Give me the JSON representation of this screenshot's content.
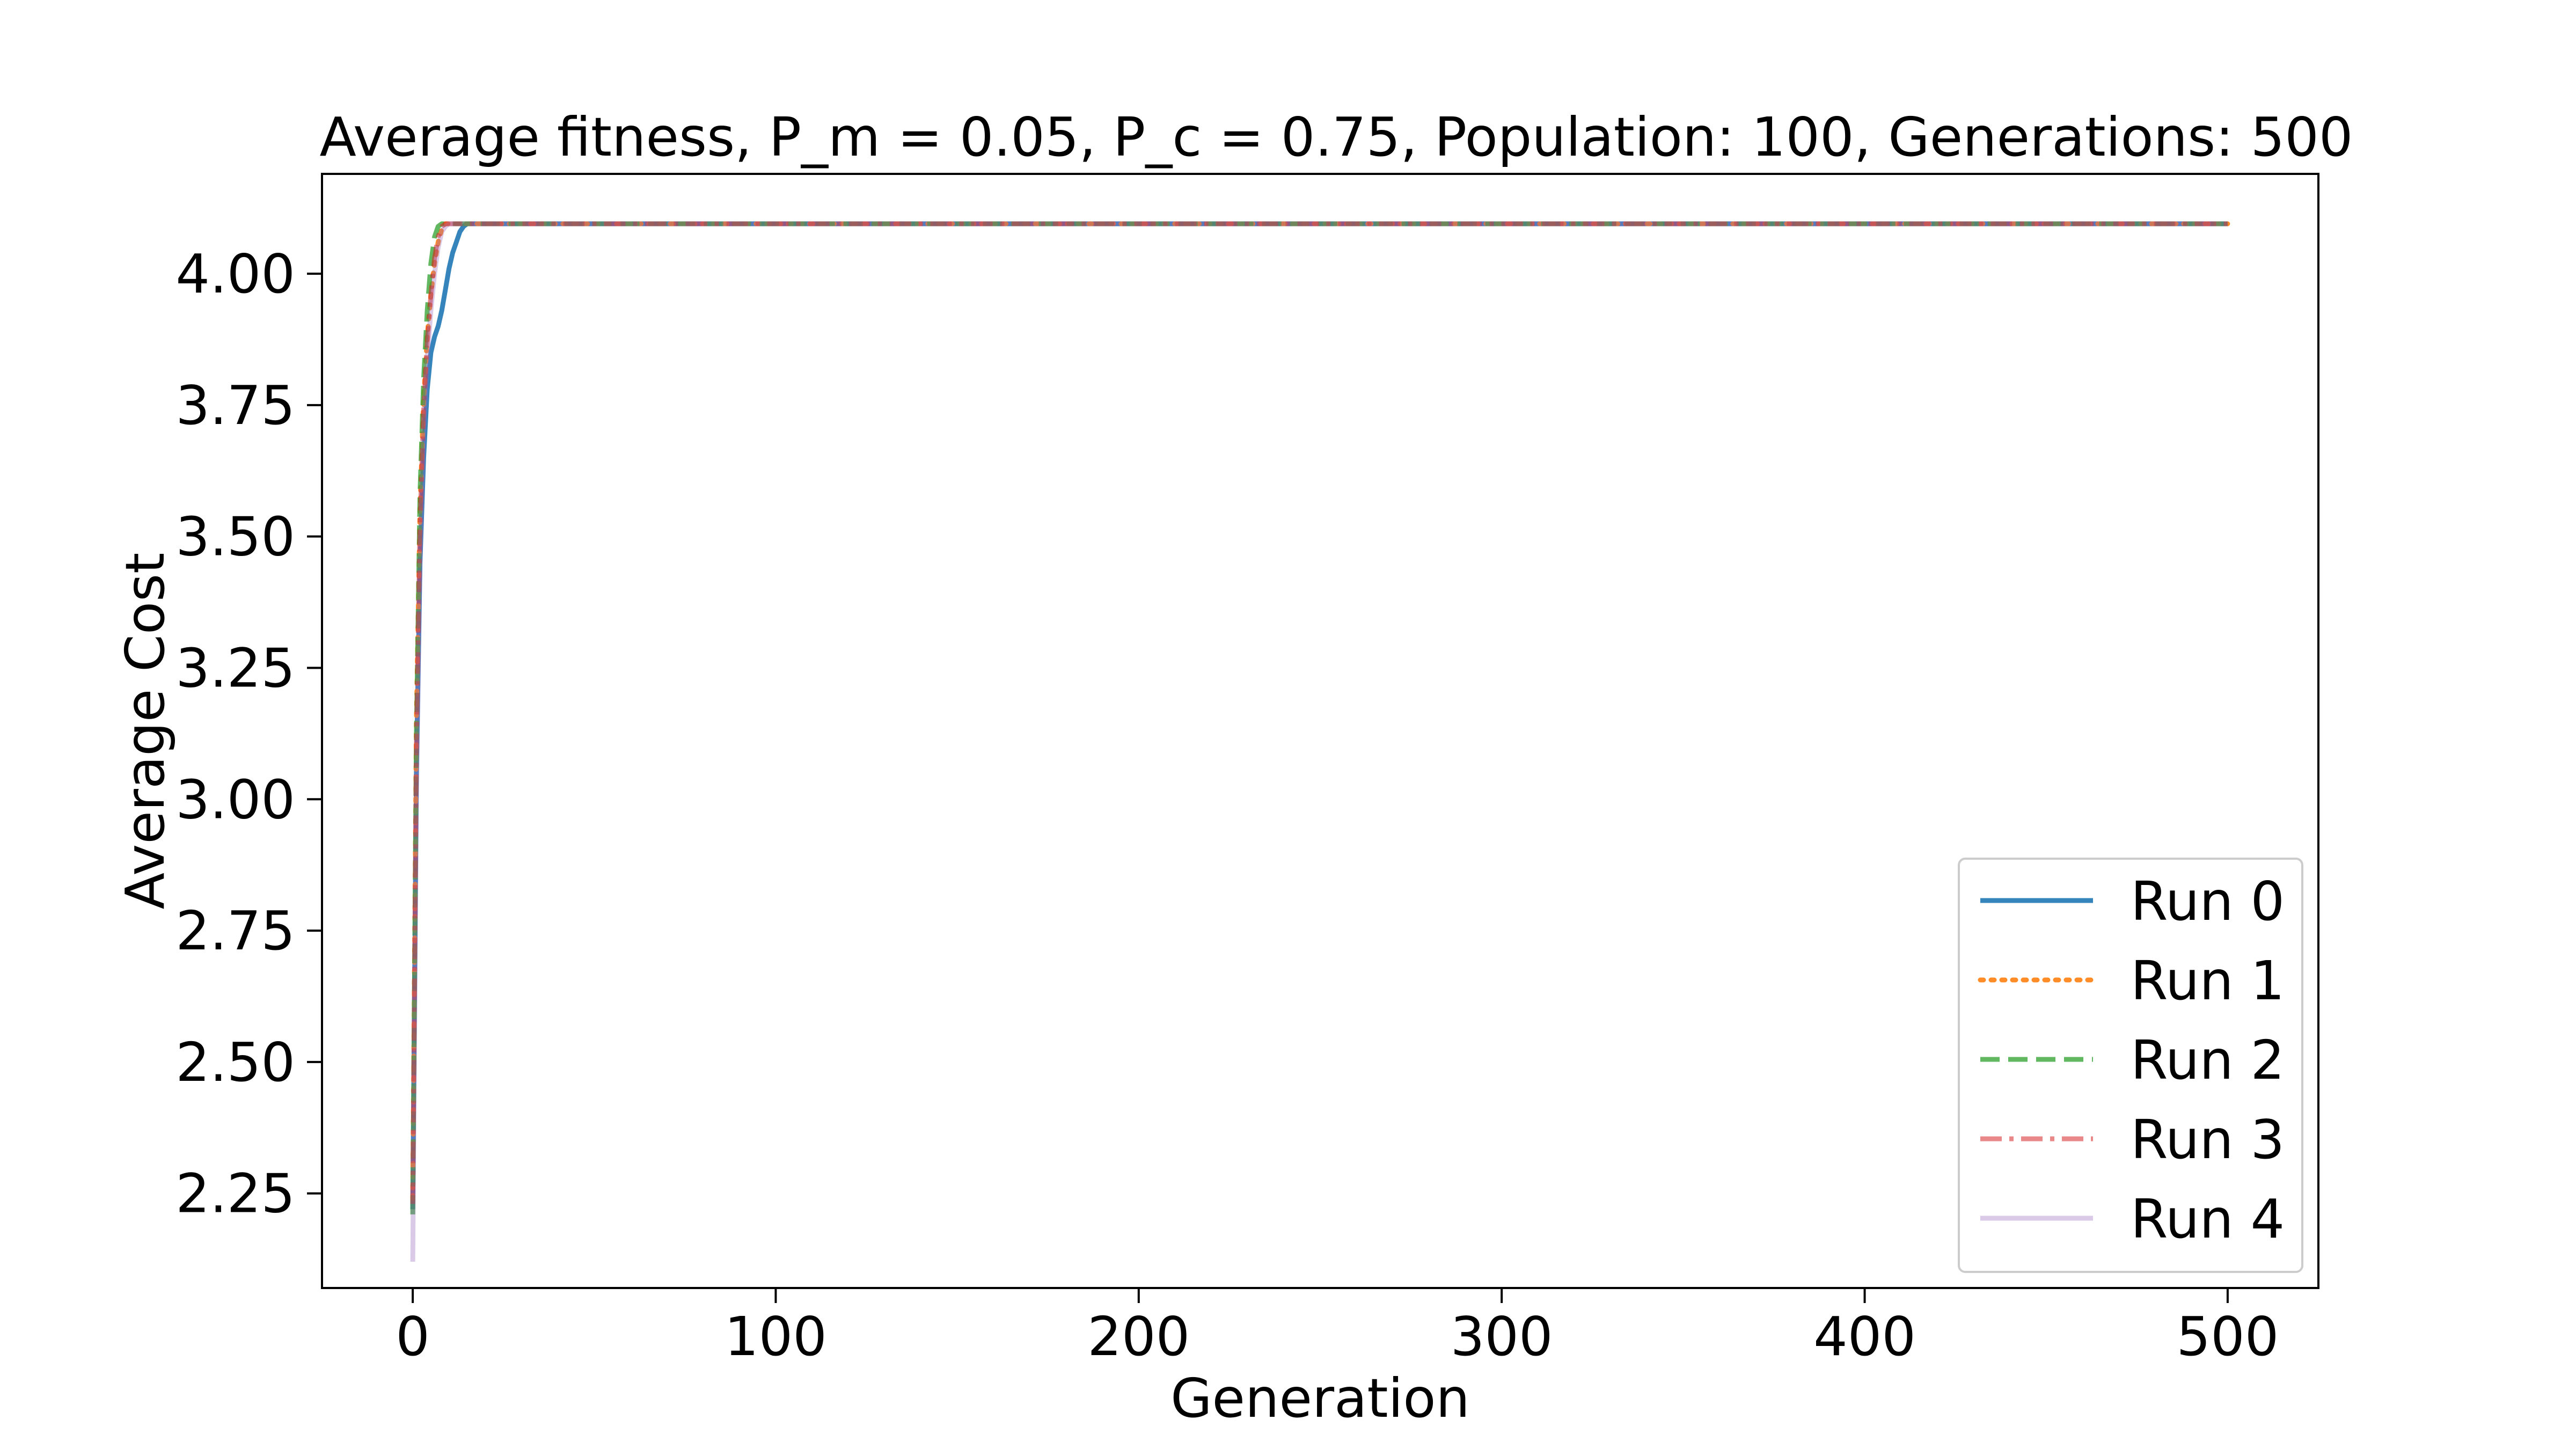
{
  "chart_data": {
    "type": "line",
    "title": "Average fitness, P_m = 0.05, P_c = 0.75, Population: 100, Generations: 500",
    "xlabel": "Generation",
    "ylabel": "Average Cost",
    "xlim": [
      -25,
      525
    ],
    "ylim": [
      2.07,
      4.19
    ],
    "xticks": [
      0,
      100,
      200,
      300,
      400,
      500
    ],
    "xtick_labels": [
      "0",
      "100",
      "200",
      "300",
      "400",
      "500"
    ],
    "yticks": [
      2.25,
      2.5,
      2.75,
      3.0,
      3.25,
      3.5,
      3.75,
      4.0
    ],
    "ytick_labels": [
      "2.25",
      "2.50",
      "2.75",
      "3.00",
      "3.25",
      "3.50",
      "3.75",
      "4.00"
    ],
    "grid": false,
    "legend_position": "lower-right",
    "series": [
      {
        "name": "Run 0",
        "color": "#1f77b4",
        "dash": "solid",
        "opacity": 0.9,
        "x": [
          0,
          1,
          2,
          3,
          4,
          5,
          6,
          7,
          8,
          9,
          10,
          11,
          12,
          13,
          14,
          15,
          500
        ],
        "y": [
          2.22,
          3.05,
          3.45,
          3.65,
          3.78,
          3.85,
          3.88,
          3.9,
          3.93,
          3.97,
          4.01,
          4.04,
          4.06,
          4.08,
          4.09,
          4.095,
          4.095
        ]
      },
      {
        "name": "Run 1",
        "color": "#ff7f0e",
        "dash": "dotted",
        "opacity": 0.9,
        "x": [
          0,
          1,
          2,
          3,
          4,
          5,
          6,
          7,
          8,
          9,
          500
        ],
        "y": [
          2.24,
          3.15,
          3.55,
          3.76,
          3.88,
          3.96,
          4.02,
          4.06,
          4.085,
          4.095,
          4.095
        ]
      },
      {
        "name": "Run 2",
        "color": "#2ca02c",
        "dash": "dashed",
        "opacity": 0.75,
        "x": [
          0,
          1,
          2,
          3,
          4,
          5,
          6,
          7,
          8,
          500
        ],
        "y": [
          2.21,
          3.12,
          3.58,
          3.8,
          3.93,
          4.02,
          4.07,
          4.09,
          4.095,
          4.095
        ]
      },
      {
        "name": "Run 3",
        "color": "#d62728",
        "dash": "dashdot",
        "opacity": 0.55,
        "x": [
          0,
          1,
          2,
          3,
          4,
          5,
          6,
          7,
          8,
          9,
          500
        ],
        "y": [
          2.23,
          3.1,
          3.52,
          3.74,
          3.87,
          3.96,
          4.03,
          4.07,
          4.09,
          4.095,
          4.095
        ]
      },
      {
        "name": "Run 4",
        "color": "#9467bd",
        "dash": "solid",
        "opacity": 0.35,
        "x": [
          0,
          1,
          2,
          3,
          4,
          5,
          6,
          7,
          8,
          9,
          10,
          500
        ],
        "y": [
          2.12,
          3.0,
          3.45,
          3.7,
          3.84,
          3.93,
          4.0,
          4.05,
          4.08,
          4.09,
          4.095,
          4.095
        ]
      }
    ]
  }
}
